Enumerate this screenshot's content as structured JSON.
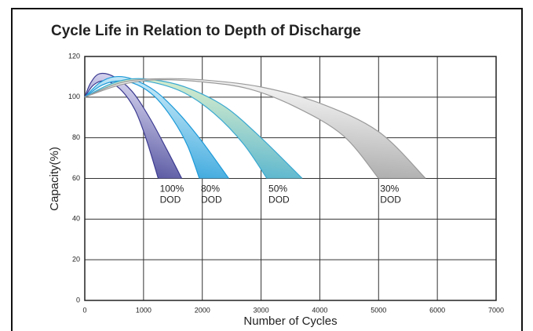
{
  "chart_data": {
    "type": "band",
    "title": "Cycle Life in Relation to Depth of Discharge",
    "x_label": "Number of Cycles",
    "y_label": "Capacity(%)",
    "xlim": [
      0,
      7000
    ],
    "ylim": [
      0,
      120
    ],
    "xticks": [
      0,
      1000,
      2000,
      3000,
      4000,
      5000,
      6000,
      7000
    ],
    "yticks": [
      0,
      20,
      40,
      60,
      80,
      100,
      120
    ],
    "grid": true,
    "series": [
      {
        "label": [
          "100%",
          "DOD"
        ],
        "colors": [
          "#3b3a90",
          "#d8d6f0"
        ],
        "outer": {
          "x": [
            0,
            100,
            250,
            500,
            800,
            1100,
            1400,
            1650
          ],
          "y": [
            100,
            107,
            111.5,
            110,
            103,
            90,
            74,
            60
          ]
        },
        "inner": {
          "x": [
            0,
            150,
            350,
            600,
            850,
            1050,
            1250
          ],
          "y": [
            100,
            106,
            108,
            104,
            94,
            79,
            60
          ]
        }
      },
      {
        "label": [
          "80%",
          "DOD"
        ],
        "colors": [
          "#1e9ad8",
          "#c6e9f8"
        ],
        "outer": {
          "x": [
            0,
            250,
            500,
            800,
            1200,
            1600,
            2000,
            2450
          ],
          "y": [
            100,
            107,
            110,
            109,
            103,
            92,
            78,
            60
          ]
        },
        "inner": {
          "x": [
            0,
            300,
            600,
            900,
            1200,
            1500,
            1750,
            1950
          ],
          "y": [
            100,
            106,
            108,
            106,
            100,
            89,
            76,
            60
          ]
        }
      },
      {
        "label": [
          "50%",
          "DOD"
        ],
        "colors": [
          "#3aa8d0",
          "#d3ebcc"
        ],
        "outer": {
          "x": [
            0,
            400,
            800,
            1300,
            1800,
            2400,
            3000,
            3700
          ],
          "y": [
            100,
            106,
            109,
            108,
            104,
            95,
            80,
            60
          ]
        },
        "inner": {
          "x": [
            0,
            400,
            800,
            1200,
            1700,
            2200,
            2700,
            3100
          ],
          "y": [
            100,
            105,
            108,
            107,
            102,
            92,
            77,
            60
          ]
        }
      },
      {
        "label": [
          "30%",
          "DOD"
        ],
        "colors": [
          "#9a9a9a",
          "#f2f2f2"
        ],
        "outer": {
          "x": [
            0,
            600,
            1200,
            2000,
            3000,
            4000,
            5000,
            5800
          ],
          "y": [
            100,
            107,
            109,
            108.5,
            105,
            97,
            83,
            60
          ]
        },
        "inner": {
          "x": [
            0,
            600,
            1200,
            2000,
            2800,
            3600,
            4400,
            5000
          ],
          "y": [
            100,
            106,
            108.5,
            107.5,
            104,
            95,
            81,
            60
          ]
        }
      }
    ]
  }
}
